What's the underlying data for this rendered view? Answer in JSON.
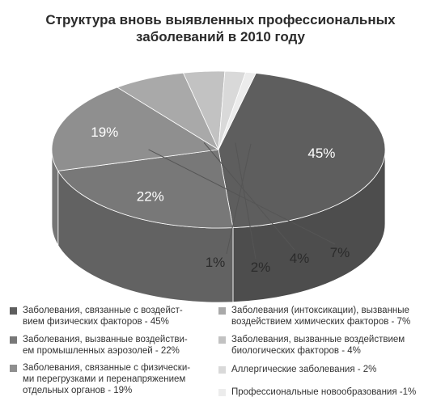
{
  "title_lines": [
    "Структура вновь выявленных профессиональных",
    "заболеваний в 2010 году"
  ],
  "chart_data": {
    "type": "pie",
    "title": "Структура вновь выявленных профессиональных заболеваний в 2010 году",
    "slices": [
      {
        "label": "Заболевания, связанные с воздейст-\nвием физических факторов - 45%",
        "value": 45,
        "value_label": "45%",
        "color": "#5e5e5e"
      },
      {
        "label": "Заболевания, вызванные воздействи-\nем промышленных аэрозолей - 22%",
        "value": 22,
        "value_label": "22%",
        "color": "#787878"
      },
      {
        "label": "Заболевания, связанные с физически-\nми перегрузками и перенапряжением\nотдельных органов - 19%",
        "value": 19,
        "value_label": "19%",
        "color": "#8f8f8f"
      },
      {
        "label": "Заболевания (интоксикации), вызванные\nвоздействием химических факторов - 7%",
        "value": 7,
        "value_label": "7%",
        "color": "#a9a9a9"
      },
      {
        "label": "Заболевания, вызванные воздействием\nбиологических факторов - 4%",
        "value": 4,
        "value_label": "4%",
        "color": "#c2c2c2"
      },
      {
        "label": "Аллергические заболевания - 2%",
        "value": 2,
        "value_label": "2%",
        "color": "#d9d9d9"
      },
      {
        "label": "Профессиональные новообразования -1%",
        "value": 1,
        "value_label": "1%",
        "color": "#ececec"
      }
    ]
  }
}
